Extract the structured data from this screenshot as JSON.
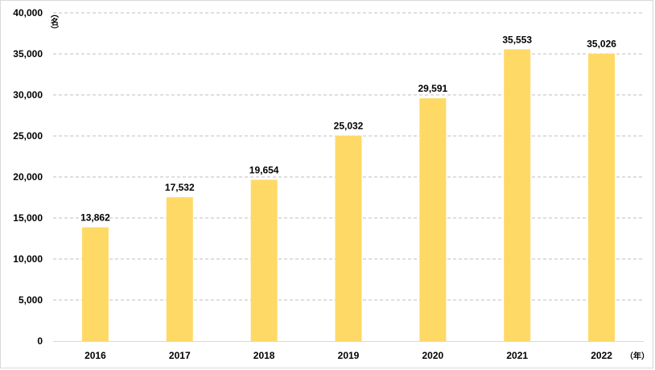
{
  "chart_data": {
    "type": "bar",
    "categories": [
      "2016",
      "2017",
      "2018",
      "2019",
      "2020",
      "2021",
      "2022"
    ],
    "values": [
      13862,
      17532,
      19654,
      25032,
      29591,
      35553,
      35026
    ],
    "data_labels": [
      "13,862",
      "17,532",
      "19,654",
      "25,032",
      "29,591",
      "35,553",
      "35,026"
    ],
    "y_ticks": [
      0,
      5000,
      10000,
      15000,
      20000,
      25000,
      30000,
      35000,
      40000
    ],
    "y_tick_labels": [
      "0",
      "5,000",
      "10,000",
      "15,000",
      "20,000",
      "25,000",
      "30,000",
      "35,000",
      "40,000"
    ],
    "ylim": [
      0,
      40000
    ],
    "y_unit": "（名）",
    "x_unit": "（年）",
    "bar_color": "#FFD966",
    "grid": true,
    "grid_color": "#bfbfbf",
    "legend": "none"
  }
}
